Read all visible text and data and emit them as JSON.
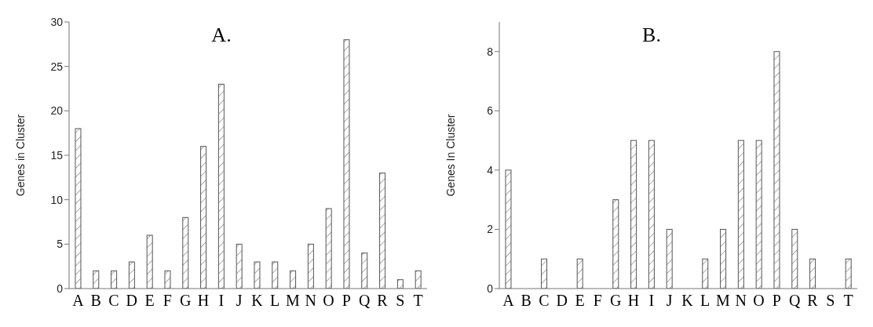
{
  "chart_data": [
    {
      "type": "bar",
      "title": "A.",
      "ylabel": "Genes in Cluster",
      "categories": [
        "A",
        "B",
        "C",
        "D",
        "E",
        "F",
        "G",
        "H",
        "I",
        "J",
        "K",
        "L",
        "M",
        "N",
        "O",
        "P",
        "Q",
        "R",
        "S",
        "T"
      ],
      "values": [
        18,
        2,
        2,
        3,
        6,
        2,
        8,
        16,
        23,
        5,
        3,
        3,
        2,
        5,
        9,
        28,
        4,
        13,
        1,
        2
      ],
      "color": "#555555",
      "ylim": [
        0,
        30
      ],
      "yticks": [
        0,
        5,
        10,
        15,
        20,
        25,
        30
      ]
    },
    {
      "type": "bar",
      "title": "B.",
      "ylabel": "Genes In Cluster",
      "categories": [
        "A",
        "B",
        "C",
        "D",
        "E",
        "F",
        "G",
        "H",
        "I",
        "J",
        "K",
        "L",
        "M",
        "N",
        "O",
        "P",
        "Q",
        "R",
        "S",
        "T"
      ],
      "values": [
        4,
        0,
        1,
        0,
        1,
        0,
        3,
        5,
        5,
        2,
        0,
        1,
        2,
        5,
        5,
        8,
        2,
        1,
        0,
        1
      ],
      "color": "#555555",
      "ylim": [
        0,
        9
      ],
      "yticks": [
        0,
        2,
        4,
        6,
        8
      ]
    }
  ]
}
